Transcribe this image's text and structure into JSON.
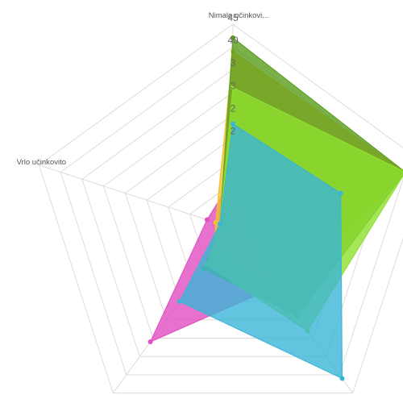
{
  "chart_data": {
    "type": "radar",
    "axes": [
      "Nimalo učinkovi...",
      "",
      "",
      "",
      "Vrlo učinkovito"
    ],
    "r_ticks": [
      5,
      10,
      15,
      20,
      25,
      30,
      35,
      40,
      45
    ],
    "r_tick_labels_visible": [
      "45",
      "40",
      "3",
      "3",
      "2",
      "2"
    ],
    "rmax": 45,
    "grid": true,
    "legend": "none",
    "series": [
      {
        "color": "#e04fc1",
        "values": [
          11,
          4,
          16,
          31,
          6
        ]
      },
      {
        "color": "#f0c030",
        "values": [
          39,
          40,
          19,
          7,
          4
        ]
      },
      {
        "color": "#5a9e1e",
        "values": [
          42,
          40,
          24,
          11,
          3
        ]
      },
      {
        "color": "#8ee030",
        "values": [
          31,
          40,
          28,
          10,
          3
        ]
      },
      {
        "color": "#3bb5d6",
        "values": [
          23,
          25,
          41,
          20,
          3
        ]
      }
    ]
  }
}
